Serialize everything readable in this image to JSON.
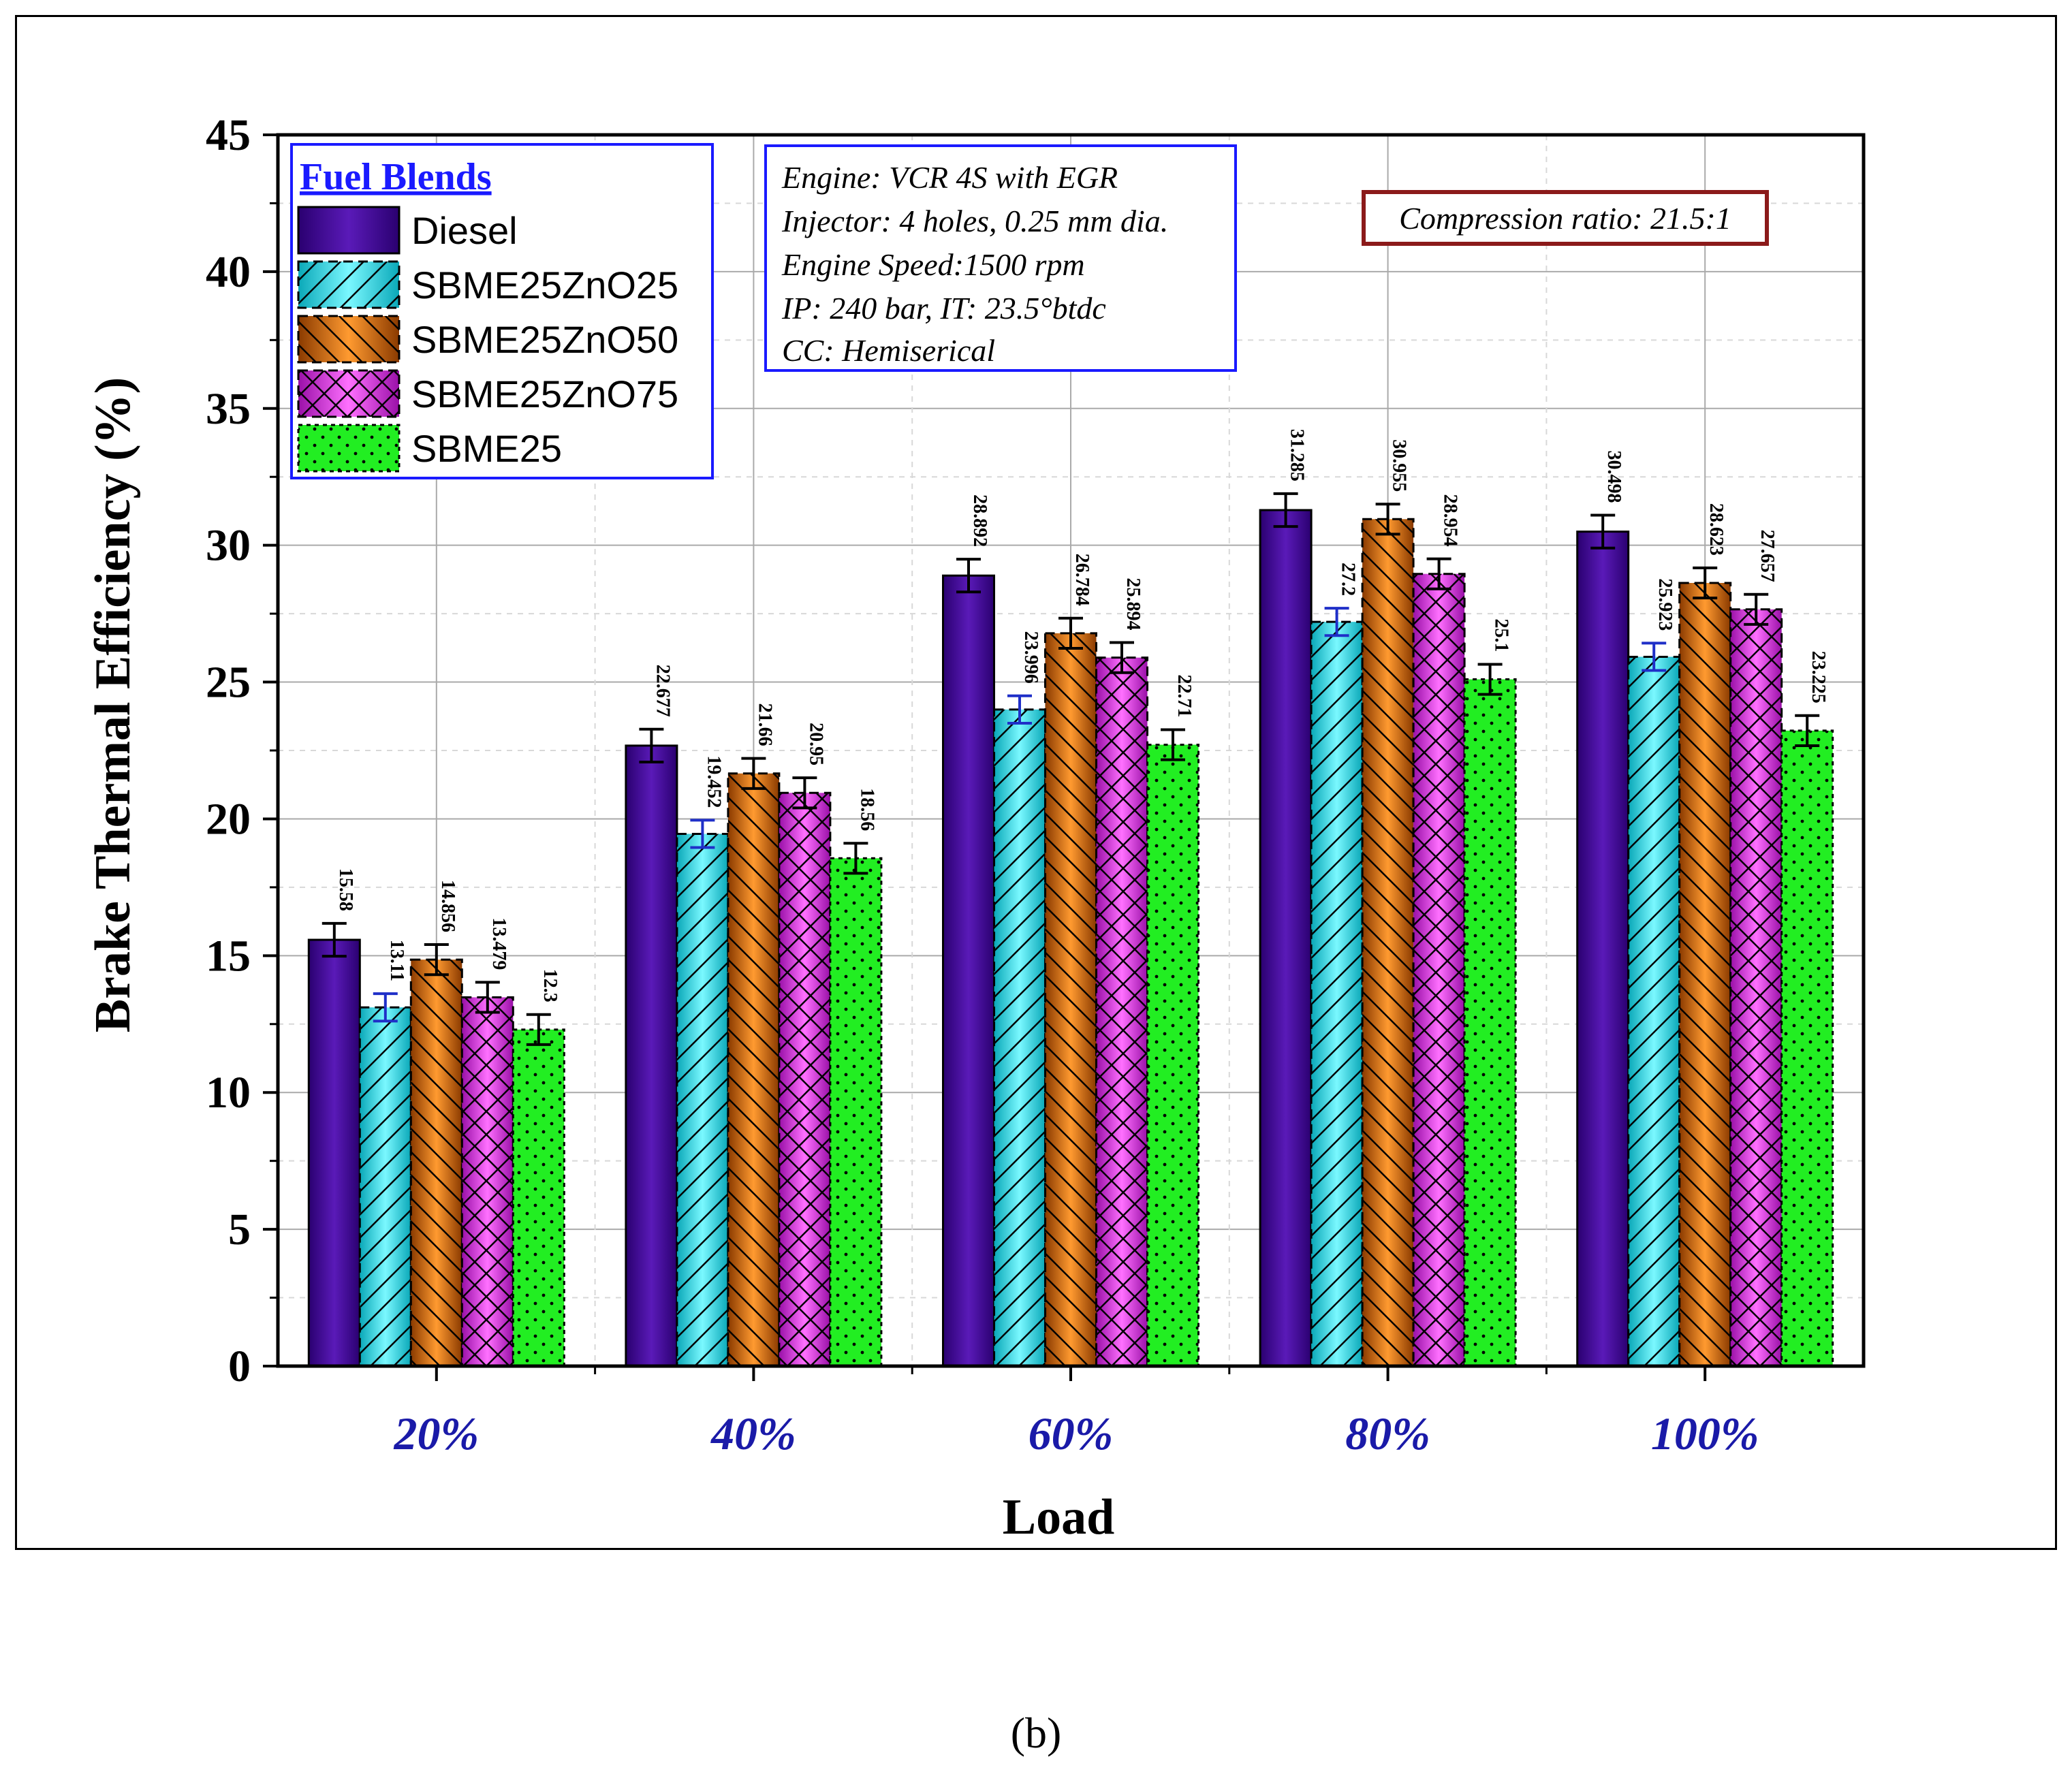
{
  "chart_data": {
    "type": "bar",
    "title": "",
    "xlabel": "Load",
    "ylabel": "Brake Thermal Efficiency (%)",
    "ylim": [
      0,
      45
    ],
    "yticks": [
      0,
      5,
      10,
      15,
      20,
      25,
      30,
      35,
      40,
      45
    ],
    "grid": true,
    "categories": [
      "20%",
      "40%",
      "60%",
      "80%",
      "100%"
    ],
    "series": [
      {
        "name": "Diesel",
        "values": [
          15.58,
          22.677,
          28.892,
          31.285,
          30.498
        ],
        "labels": [
          "15.58",
          "22.677",
          "28.892",
          "31.285",
          "30.498"
        ],
        "color": "#4a0e9e",
        "error": 0.6,
        "error_color": "#000000"
      },
      {
        "name": "SBME25ZnO25",
        "values": [
          13.11,
          19.452,
          23.996,
          27.2,
          25.923
        ],
        "labels": [
          "13.11",
          "19.452",
          "23.996",
          "27.2",
          "25.923"
        ],
        "color": "#2ee6ec",
        "error": 0.5,
        "error_color": "#1f2fc8"
      },
      {
        "name": "SBME25ZnO50",
        "values": [
          14.856,
          21.66,
          26.784,
          30.955,
          28.623
        ],
        "labels": [
          "14.856",
          "21.66",
          "26.784",
          "30.955",
          "28.623"
        ],
        "color": "#ff8a1c",
        "error": 0.55,
        "error_color": "#000000"
      },
      {
        "name": "SBME25ZnO75",
        "values": [
          13.479,
          20.95,
          25.894,
          28.954,
          27.657
        ],
        "labels": [
          "13.479",
          "20.95",
          "25.894",
          "28.954",
          "27.657"
        ],
        "color": "#e040e8",
        "error": 0.55,
        "error_color": "#000000"
      },
      {
        "name": "SBME25",
        "values": [
          12.3,
          18.56,
          22.71,
          25.1,
          23.225
        ],
        "labels": [
          "12.3",
          "18.56",
          "22.71",
          "25.1",
          "23.225"
        ],
        "color": "#22ee22",
        "error": 0.55,
        "error_color": "#000000"
      }
    ],
    "legend": {
      "title": "Fuel Blends",
      "position": "top-left"
    },
    "info_box": [
      "Engine: VCR 4S with EGR",
      "Injector: 4 holes, 0.25 mm dia.",
      "Engine Speed:1500 rpm",
      "IP: 240 bar, IT: 23.5°btdc",
      "CC: Hemiserical"
    ],
    "annotation": "Compression ratio: 21.5:1"
  },
  "caption": "(b)",
  "colors": {
    "axis_text": "#000000",
    "category_text": "#1a1aa8",
    "legend_border": "#1a1aff",
    "legend_title": "#1a1aff",
    "annotation_border": "#8b1a1a"
  }
}
